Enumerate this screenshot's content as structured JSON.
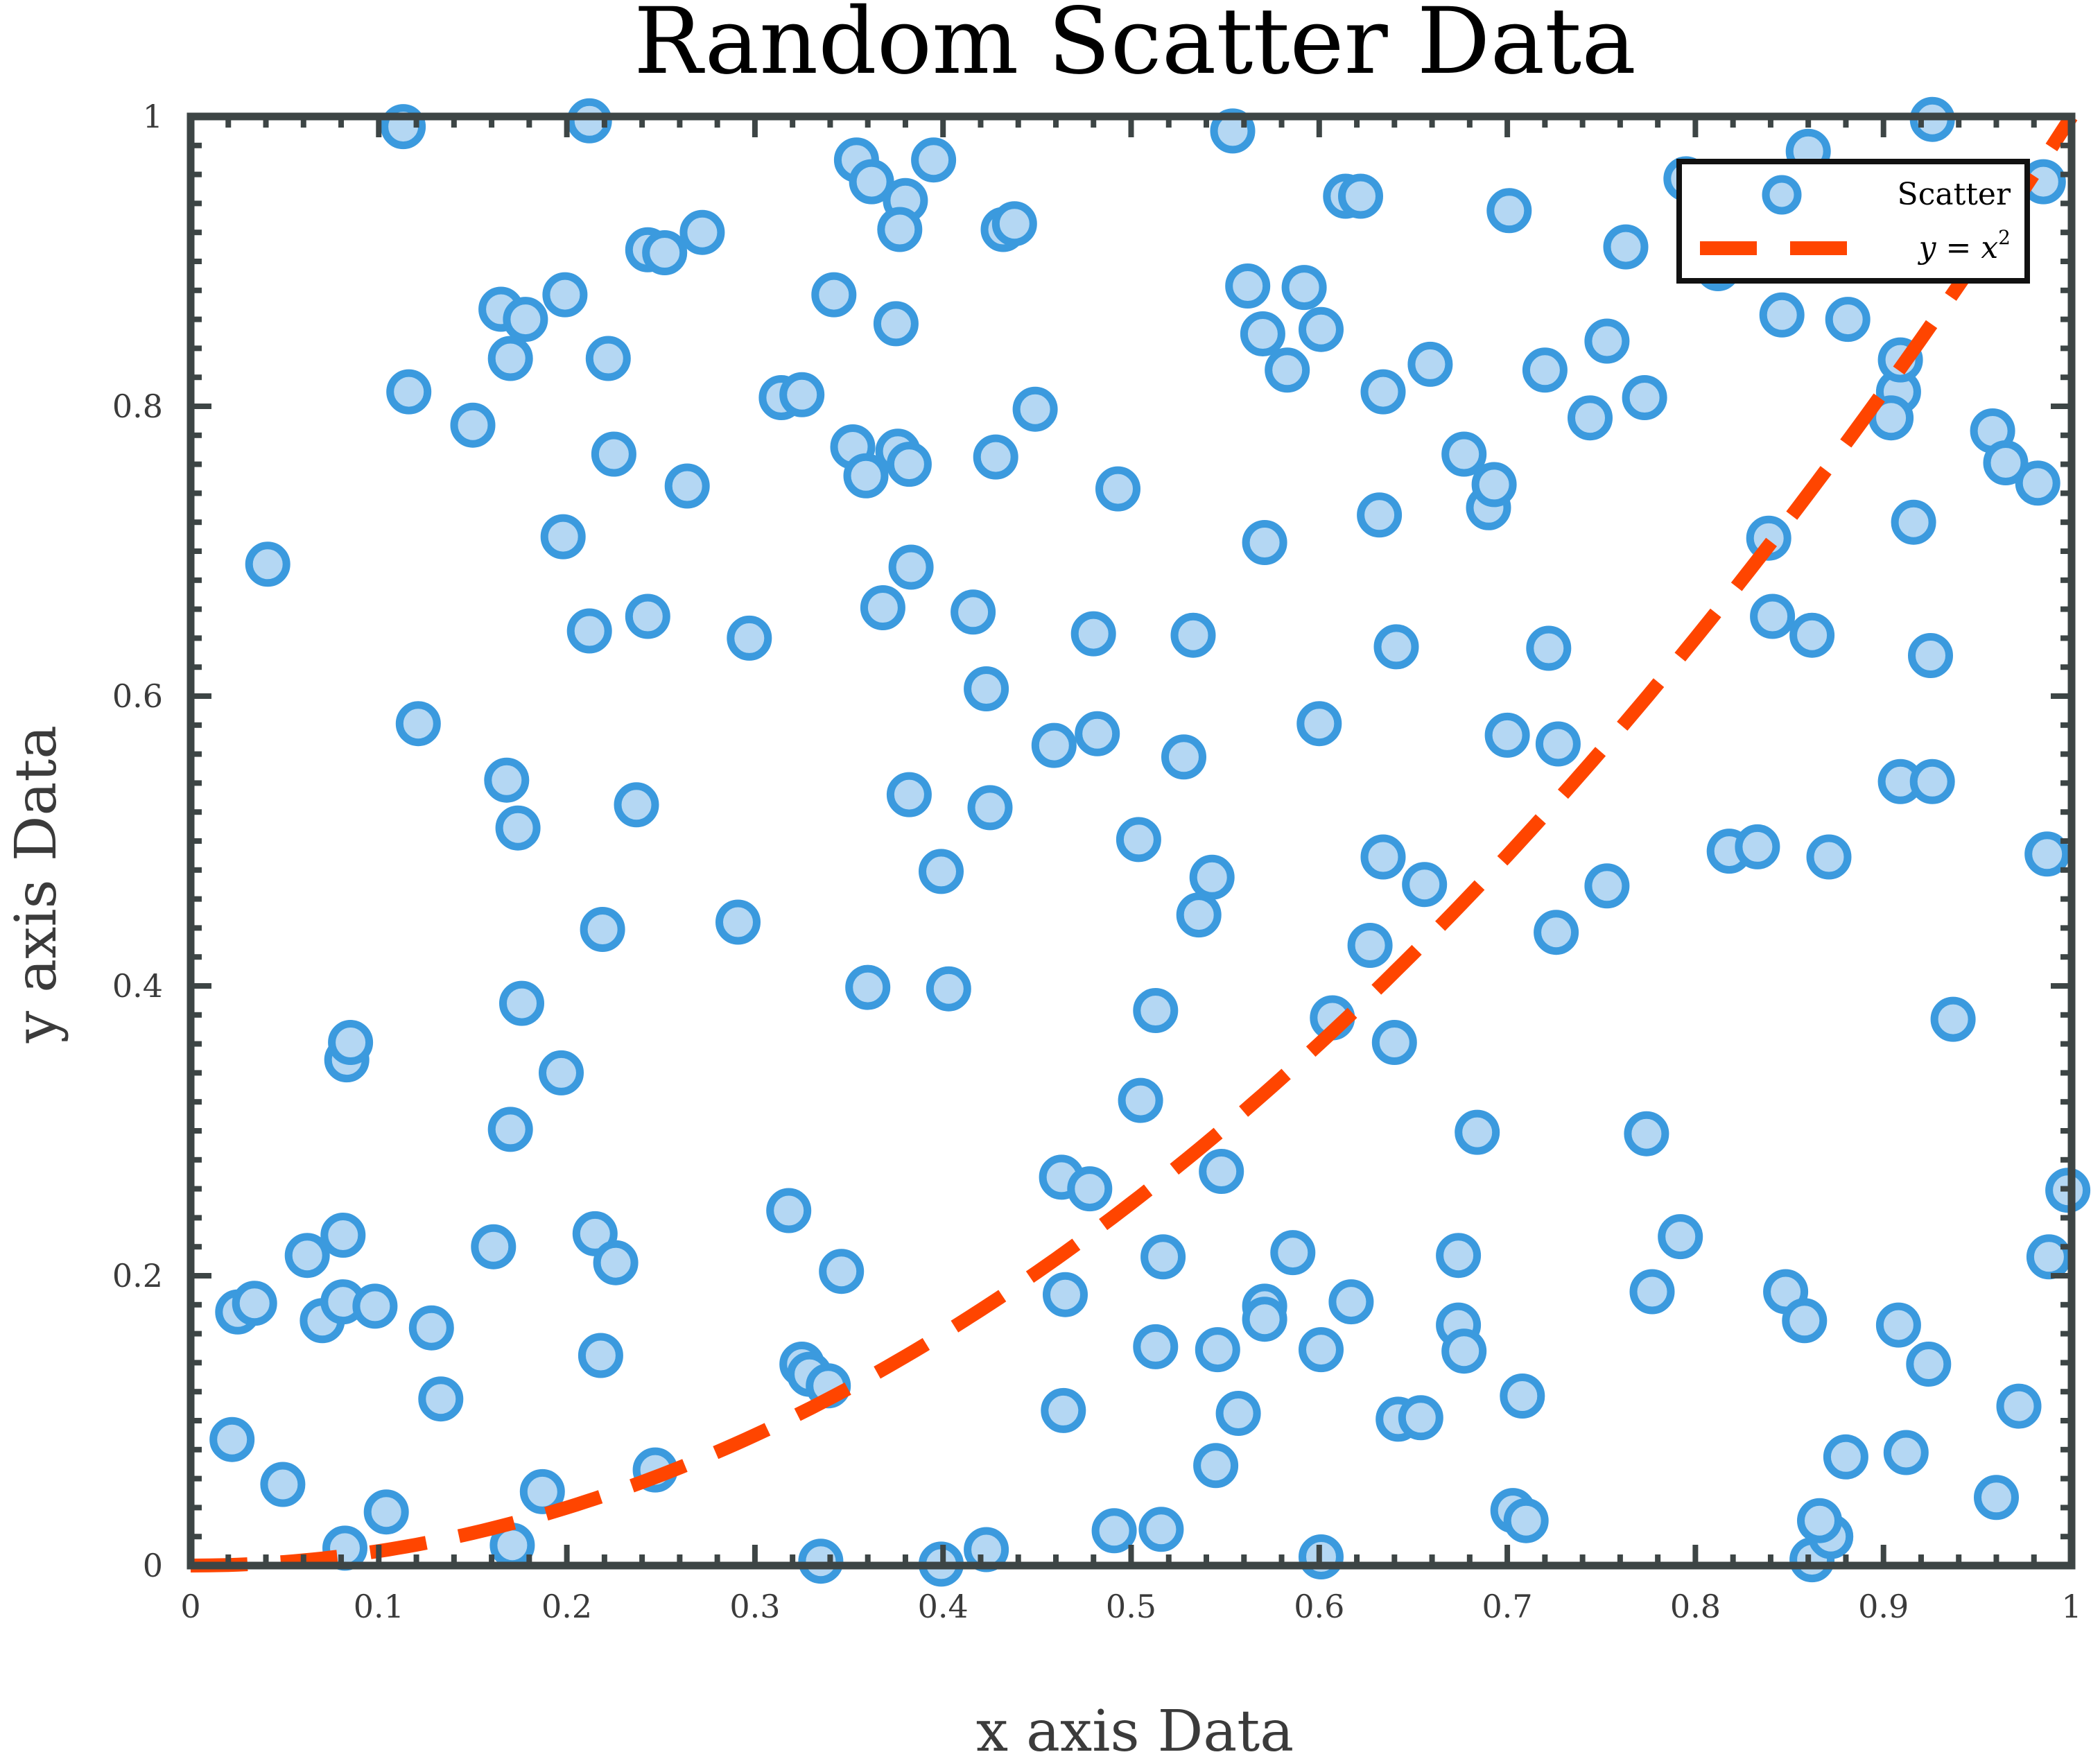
{
  "chart_data": {
    "type": "scatter",
    "title": "Random Scatter Data",
    "xlabel": "x axis Data",
    "ylabel": "y axis Data",
    "xlim": [
      0,
      1
    ],
    "ylim": [
      0,
      1
    ],
    "xticks": [
      0,
      0.1,
      0.2,
      0.3,
      0.4,
      0.5,
      0.6,
      0.7,
      0.8,
      0.9,
      1
    ],
    "xtick_labels": [
      "0",
      "0.1",
      "0.2",
      "0.3",
      "0.4",
      "0.5",
      "0.6",
      "0.7",
      "0.8",
      "0.9",
      "1"
    ],
    "yticks": [
      0,
      0.2,
      0.4,
      0.6,
      0.8,
      1
    ],
    "ytick_labels": [
      "0",
      "0.2",
      "0.4",
      "0.6",
      "0.8",
      "1"
    ],
    "grid": false,
    "box": true,
    "legend": {
      "location": "top-right",
      "entries": [
        {
          "label": "Scatter",
          "marker": "circle"
        },
        {
          "label": "y = x",
          "superscript": "2",
          "style": "dashed-line"
        }
      ]
    },
    "series": [
      {
        "name": "Scatter",
        "marker": "circle",
        "face_color": "#b4d7f3",
        "edge_color": "#3b9ade",
        "points": [
          [
            0.113,
            0.993
          ],
          [
            0.212,
            0.997
          ],
          [
            0.554,
            0.99
          ],
          [
            0.926,
            0.998
          ],
          [
            0.86,
            0.976
          ],
          [
            0.985,
            0.955
          ],
          [
            0.795,
            0.957
          ],
          [
            0.354,
            0.97
          ],
          [
            0.395,
            0.97
          ],
          [
            0.362,
            0.955
          ],
          [
            0.38,
            0.942
          ],
          [
            0.377,
            0.922
          ],
          [
            0.432,
            0.922
          ],
          [
            0.438,
            0.926
          ],
          [
            0.614,
            0.945
          ],
          [
            0.622,
            0.945
          ],
          [
            0.701,
            0.935
          ],
          [
            0.845,
            0.945
          ],
          [
            0.272,
            0.92
          ],
          [
            0.243,
            0.908
          ],
          [
            0.252,
            0.906
          ],
          [
            0.763,
            0.91
          ],
          [
            0.812,
            0.895
          ],
          [
            0.342,
            0.877
          ],
          [
            0.199,
            0.877
          ],
          [
            0.165,
            0.867
          ],
          [
            0.178,
            0.86
          ],
          [
            0.17,
            0.833
          ],
          [
            0.222,
            0.833
          ],
          [
            0.375,
            0.857
          ],
          [
            0.562,
            0.883
          ],
          [
            0.592,
            0.882
          ],
          [
            0.57,
            0.85
          ],
          [
            0.601,
            0.853
          ],
          [
            0.583,
            0.825
          ],
          [
            0.753,
            0.845
          ],
          [
            0.846,
            0.863
          ],
          [
            0.881,
            0.86
          ],
          [
            0.116,
            0.81
          ],
          [
            0.15,
            0.787
          ],
          [
            0.314,
            0.806
          ],
          [
            0.325,
            0.808
          ],
          [
            0.449,
            0.798
          ],
          [
            0.634,
            0.81
          ],
          [
            0.659,
            0.829
          ],
          [
            0.72,
            0.825
          ],
          [
            0.773,
            0.806
          ],
          [
            0.744,
            0.792
          ],
          [
            0.908,
            0.81
          ],
          [
            0.904,
            0.792
          ],
          [
            0.909,
            0.832
          ],
          [
            0.958,
            0.783
          ],
          [
            0.965,
            0.761
          ],
          [
            0.982,
            0.747
          ],
          [
            0.225,
            0.767
          ],
          [
            0.264,
            0.745
          ],
          [
            0.352,
            0.772
          ],
          [
            0.359,
            0.752
          ],
          [
            0.376,
            0.769
          ],
          [
            0.382,
            0.76
          ],
          [
            0.428,
            0.765
          ],
          [
            0.493,
            0.743
          ],
          [
            0.677,
            0.767
          ],
          [
            0.69,
            0.73
          ],
          [
            0.693,
            0.746
          ],
          [
            0.632,
            0.725
          ],
          [
            0.041,
            0.691
          ],
          [
            0.198,
            0.71
          ],
          [
            0.212,
            0.645
          ],
          [
            0.243,
            0.655
          ],
          [
            0.297,
            0.64
          ],
          [
            0.368,
            0.661
          ],
          [
            0.383,
            0.689
          ],
          [
            0.416,
            0.658
          ],
          [
            0.571,
            0.706
          ],
          [
            0.839,
            0.709
          ],
          [
            0.916,
            0.72
          ],
          [
            0.48,
            0.643
          ],
          [
            0.533,
            0.642
          ],
          [
            0.641,
            0.634
          ],
          [
            0.722,
            0.633
          ],
          [
            0.841,
            0.655
          ],
          [
            0.862,
            0.642
          ],
          [
            0.925,
            0.628
          ],
          [
            0.121,
            0.581
          ],
          [
            0.423,
            0.605
          ],
          [
            0.459,
            0.566
          ],
          [
            0.482,
            0.574
          ],
          [
            0.528,
            0.558
          ],
          [
            0.6,
            0.581
          ],
          [
            0.7,
            0.573
          ],
          [
            0.727,
            0.567
          ],
          [
            0.168,
            0.542
          ],
          [
            0.174,
            0.509
          ],
          [
            0.237,
            0.525
          ],
          [
            0.382,
            0.532
          ],
          [
            0.425,
            0.523
          ],
          [
            0.504,
            0.501
          ],
          [
            0.909,
            0.541
          ],
          [
            0.926,
            0.541
          ],
          [
            0.399,
            0.479
          ],
          [
            0.543,
            0.475
          ],
          [
            0.536,
            0.449
          ],
          [
            0.634,
            0.489
          ],
          [
            0.656,
            0.47
          ],
          [
            0.753,
            0.469
          ],
          [
            0.818,
            0.493
          ],
          [
            0.833,
            0.496
          ],
          [
            0.871,
            0.489
          ],
          [
            0.987,
            0.491
          ],
          [
            0.291,
            0.444
          ],
          [
            0.219,
            0.439
          ],
          [
            0.627,
            0.428
          ],
          [
            0.726,
            0.437
          ],
          [
            0.36,
            0.399
          ],
          [
            0.403,
            0.398
          ],
          [
            0.513,
            0.383
          ],
          [
            0.607,
            0.378
          ],
          [
            0.64,
            0.361
          ],
          [
            0.937,
            0.377
          ],
          [
            0.083,
            0.349
          ],
          [
            0.085,
            0.361
          ],
          [
            0.176,
            0.388
          ],
          [
            0.197,
            0.34
          ],
          [
            0.17,
            0.301
          ],
          [
            0.505,
            0.321
          ],
          [
            0.684,
            0.299
          ],
          [
            0.774,
            0.298
          ],
          [
            0.463,
            0.268
          ],
          [
            0.478,
            0.26
          ],
          [
            0.548,
            0.272
          ],
          [
            0.998,
            0.259
          ],
          [
            0.318,
            0.245
          ],
          [
            0.062,
            0.214
          ],
          [
            0.081,
            0.228
          ],
          [
            0.161,
            0.22
          ],
          [
            0.215,
            0.229
          ],
          [
            0.226,
            0.209
          ],
          [
            0.346,
            0.203
          ],
          [
            0.517,
            0.213
          ],
          [
            0.586,
            0.216
          ],
          [
            0.674,
            0.214
          ],
          [
            0.792,
            0.227
          ],
          [
            0.988,
            0.213
          ],
          [
            0.025,
            0.175
          ],
          [
            0.034,
            0.181
          ],
          [
            0.07,
            0.169
          ],
          [
            0.081,
            0.182
          ],
          [
            0.098,
            0.179
          ],
          [
            0.128,
            0.164
          ],
          [
            0.465,
            0.187
          ],
          [
            0.571,
            0.179
          ],
          [
            0.571,
            0.17
          ],
          [
            0.617,
            0.182
          ],
          [
            0.674,
            0.166
          ],
          [
            0.677,
            0.148
          ],
          [
            0.777,
            0.189
          ],
          [
            0.848,
            0.189
          ],
          [
            0.858,
            0.169
          ],
          [
            0.908,
            0.166
          ],
          [
            0.218,
            0.145
          ],
          [
            0.325,
            0.139
          ],
          [
            0.329,
            0.132
          ],
          [
            0.339,
            0.124
          ],
          [
            0.513,
            0.151
          ],
          [
            0.546,
            0.149
          ],
          [
            0.601,
            0.149
          ],
          [
            0.924,
            0.139
          ],
          [
            0.133,
            0.115
          ],
          [
            0.464,
            0.107
          ],
          [
            0.557,
            0.105
          ],
          [
            0.642,
            0.101
          ],
          [
            0.654,
            0.102
          ],
          [
            0.708,
            0.117
          ],
          [
            0.972,
            0.11
          ],
          [
            0.022,
            0.087
          ],
          [
            0.049,
            0.056
          ],
          [
            0.104,
            0.037
          ],
          [
            0.082,
            0.012
          ],
          [
            0.171,
            0.014
          ],
          [
            0.187,
            0.051
          ],
          [
            0.247,
            0.066
          ],
          [
            0.545,
            0.069
          ],
          [
            0.88,
            0.075
          ],
          [
            0.912,
            0.078
          ],
          [
            0.96,
            0.047
          ],
          [
            0.335,
            0.003
          ],
          [
            0.399,
            0.001
          ],
          [
            0.423,
            0.011
          ],
          [
            0.491,
            0.024
          ],
          [
            0.516,
            0.025
          ],
          [
            0.601,
            0.006
          ],
          [
            0.703,
            0.038
          ],
          [
            0.71,
            0.031
          ],
          [
            0.862,
            0.004
          ],
          [
            0.872,
            0.02
          ],
          [
            0.866,
            0.031
          ]
        ]
      },
      {
        "name": "y = x²",
        "type": "line",
        "function": "y = x^2",
        "style": "dashed",
        "color": "#ff4500"
      }
    ]
  }
}
